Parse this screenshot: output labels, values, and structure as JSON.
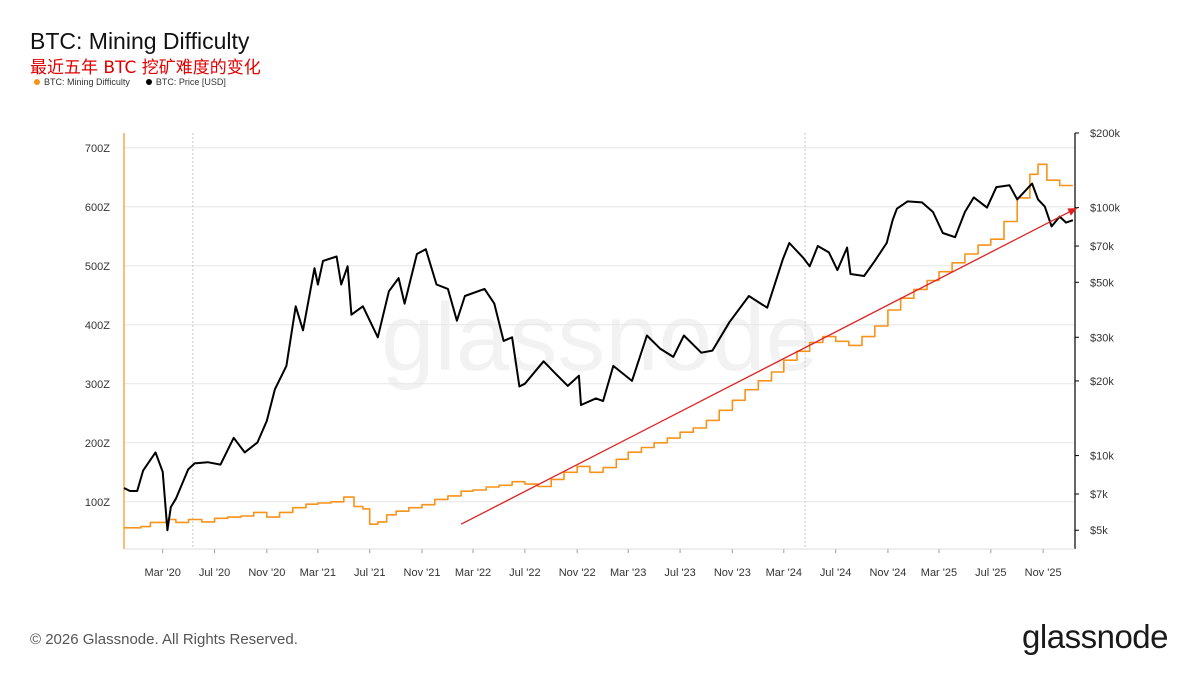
{
  "header": {
    "title": "BTC: Mining Difficulty",
    "subtitle": "最近五年 BTC 挖矿难度的变化"
  },
  "legend": [
    {
      "label": "BTC: Mining Difficulty",
      "color": "#f7931a"
    },
    {
      "label": "BTC: Price [USD]",
      "color": "#000000"
    }
  ],
  "footer": {
    "copyright": "© 2026 Glassnode. All Rights Reserved."
  },
  "brand": {
    "logo_text": "glassnode",
    "watermark": "glassnode"
  },
  "colors": {
    "difficulty": "#f7931a",
    "price": "#000000",
    "trend": "#e02020",
    "grid": "#e6e6e6"
  },
  "chart_data": {
    "type": "line",
    "title": "BTC: Mining Difficulty",
    "x_range": [
      "2019-12-01",
      "2026-01-15"
    ],
    "x_tick_labels": [
      "Mar '20",
      "Jul '20",
      "Nov '20",
      "Mar '21",
      "Jul '21",
      "Nov '21",
      "Mar '22",
      "Jul '22",
      "Nov '22",
      "Mar '23",
      "Jul '23",
      "Nov '23",
      "Mar '24",
      "Jul '24",
      "Nov '24",
      "Mar '25",
      "Jul '25",
      "Nov '25"
    ],
    "x_tick_dates": [
      "2020-03-01",
      "2020-07-01",
      "2020-11-01",
      "2021-03-01",
      "2021-07-01",
      "2021-11-01",
      "2022-03-01",
      "2022-07-01",
      "2022-11-01",
      "2023-03-01",
      "2023-07-01",
      "2023-11-01",
      "2024-03-01",
      "2024-07-01",
      "2024-11-01",
      "2025-03-01",
      "2025-07-01",
      "2025-11-01"
    ],
    "y_left": {
      "label": "",
      "unit": "Z",
      "ticks": [
        100,
        200,
        300,
        400,
        500,
        600,
        700
      ],
      "tick_labels": [
        "100Z",
        "200Z",
        "300Z",
        "400Z",
        "500Z",
        "600Z",
        "700Z"
      ],
      "range": [
        20,
        725
      ]
    },
    "y_right": {
      "label": "",
      "scale": "log",
      "ticks": [
        5000,
        7000,
        10000,
        20000,
        30000,
        50000,
        70000,
        100000,
        200000
      ],
      "tick_labels": [
        "$5k",
        "$7k",
        "$10k",
        "$20k",
        "$30k",
        "$50k",
        "$70k",
        "$100k",
        "$200k"
      ],
      "range": [
        4200,
        200000
      ]
    },
    "grid": true,
    "vertical_markers": [
      "2020-05-11",
      "2024-04-20"
    ],
    "series": [
      {
        "name": "BTC: Mining Difficulty",
        "axis": "left",
        "color": "#f7931a",
        "step": true,
        "points": [
          [
            "2019-12-01",
            56
          ],
          [
            "2020-01-10",
            58
          ],
          [
            "2020-02-01",
            65
          ],
          [
            "2020-03-10",
            70
          ],
          [
            "2020-04-01",
            65
          ],
          [
            "2020-05-01",
            70
          ],
          [
            "2020-06-01",
            66
          ],
          [
            "2020-07-01",
            72
          ],
          [
            "2020-08-01",
            74
          ],
          [
            "2020-09-01",
            76
          ],
          [
            "2020-10-01",
            82
          ],
          [
            "2020-11-01",
            74
          ],
          [
            "2020-12-01",
            82
          ],
          [
            "2021-01-01",
            90
          ],
          [
            "2021-02-01",
            96
          ],
          [
            "2021-03-01",
            98
          ],
          [
            "2021-04-01",
            100
          ],
          [
            "2021-05-01",
            108
          ],
          [
            "2021-05-25",
            92
          ],
          [
            "2021-06-15",
            88
          ],
          [
            "2021-07-01",
            62
          ],
          [
            "2021-07-20",
            66
          ],
          [
            "2021-08-10",
            78
          ],
          [
            "2021-09-01",
            84
          ],
          [
            "2021-10-01",
            90
          ],
          [
            "2021-11-01",
            95
          ],
          [
            "2021-12-01",
            104
          ],
          [
            "2022-01-01",
            110
          ],
          [
            "2022-02-01",
            118
          ],
          [
            "2022-03-01",
            120
          ],
          [
            "2022-04-01",
            125
          ],
          [
            "2022-05-01",
            128
          ],
          [
            "2022-06-01",
            134
          ],
          [
            "2022-07-01",
            130
          ],
          [
            "2022-08-01",
            126
          ],
          [
            "2022-09-01",
            138
          ],
          [
            "2022-10-01",
            150
          ],
          [
            "2022-11-01",
            160
          ],
          [
            "2022-12-01",
            150
          ],
          [
            "2023-01-01",
            158
          ],
          [
            "2023-02-01",
            172
          ],
          [
            "2023-03-01",
            184
          ],
          [
            "2023-04-01",
            192
          ],
          [
            "2023-05-01",
            200
          ],
          [
            "2023-06-01",
            208
          ],
          [
            "2023-07-01",
            218
          ],
          [
            "2023-08-01",
            225
          ],
          [
            "2023-09-01",
            238
          ],
          [
            "2023-10-01",
            255
          ],
          [
            "2023-11-01",
            272
          ],
          [
            "2023-12-01",
            290
          ],
          [
            "2024-01-01",
            305
          ],
          [
            "2024-02-01",
            320
          ],
          [
            "2024-03-01",
            340
          ],
          [
            "2024-04-01",
            355
          ],
          [
            "2024-05-01",
            370
          ],
          [
            "2024-06-01",
            380
          ],
          [
            "2024-07-01",
            372
          ],
          [
            "2024-08-01",
            365
          ],
          [
            "2024-09-01",
            380
          ],
          [
            "2024-10-01",
            398
          ],
          [
            "2024-11-01",
            425
          ],
          [
            "2024-12-01",
            445
          ],
          [
            "2025-01-01",
            460
          ],
          [
            "2025-02-01",
            475
          ],
          [
            "2025-03-01",
            490
          ],
          [
            "2025-04-01",
            505
          ],
          [
            "2025-05-01",
            520
          ],
          [
            "2025-06-01",
            535
          ],
          [
            "2025-07-01",
            545
          ],
          [
            "2025-08-01",
            575
          ],
          [
            "2025-09-01",
            615
          ],
          [
            "2025-10-01",
            655
          ],
          [
            "2025-10-20",
            672
          ],
          [
            "2025-11-10",
            645
          ],
          [
            "2025-12-10",
            636
          ],
          [
            "2026-01-10",
            636
          ]
        ]
      },
      {
        "name": "BTC: Price [USD]",
        "axis": "right",
        "color": "#000000",
        "step": false,
        "points": [
          [
            "2019-12-01",
            7400
          ],
          [
            "2019-12-15",
            7200
          ],
          [
            "2020-01-01",
            7200
          ],
          [
            "2020-01-15",
            8700
          ],
          [
            "2020-02-13",
            10300
          ],
          [
            "2020-03-01",
            8600
          ],
          [
            "2020-03-12",
            5000
          ],
          [
            "2020-03-20",
            6200
          ],
          [
            "2020-04-01",
            6700
          ],
          [
            "2020-04-30",
            8800
          ],
          [
            "2020-05-15",
            9300
          ],
          [
            "2020-06-15",
            9400
          ],
          [
            "2020-07-15",
            9200
          ],
          [
            "2020-08-15",
            11800
          ],
          [
            "2020-09-10",
            10300
          ],
          [
            "2020-10-10",
            11300
          ],
          [
            "2020-11-01",
            13800
          ],
          [
            "2020-11-20",
            18500
          ],
          [
            "2020-12-17",
            23000
          ],
          [
            "2021-01-08",
            40000
          ],
          [
            "2021-01-25",
            32000
          ],
          [
            "2021-02-21",
            57000
          ],
          [
            "2021-03-01",
            49000
          ],
          [
            "2021-03-13",
            61000
          ],
          [
            "2021-04-14",
            63500
          ],
          [
            "2021-04-25",
            49000
          ],
          [
            "2021-05-10",
            58000
          ],
          [
            "2021-05-19",
            37000
          ],
          [
            "2021-06-15",
            40000
          ],
          [
            "2021-07-20",
            30000
          ],
          [
            "2021-08-15",
            46000
          ],
          [
            "2021-09-07",
            52000
          ],
          [
            "2021-09-21",
            41000
          ],
          [
            "2021-10-20",
            65000
          ],
          [
            "2021-11-10",
            68000
          ],
          [
            "2021-12-05",
            49000
          ],
          [
            "2022-01-01",
            47000
          ],
          [
            "2022-01-22",
            35000
          ],
          [
            "2022-02-10",
            44000
          ],
          [
            "2022-03-28",
            47000
          ],
          [
            "2022-04-20",
            41000
          ],
          [
            "2022-05-12",
            29000
          ],
          [
            "2022-06-01",
            30000
          ],
          [
            "2022-06-18",
            19000
          ],
          [
            "2022-07-01",
            19500
          ],
          [
            "2022-08-14",
            24000
          ],
          [
            "2022-09-10",
            21500
          ],
          [
            "2022-10-10",
            19100
          ],
          [
            "2022-11-05",
            21000
          ],
          [
            "2022-11-10",
            16000
          ],
          [
            "2022-12-15",
            17000
          ],
          [
            "2023-01-01",
            16600
          ],
          [
            "2023-01-25",
            23000
          ],
          [
            "2023-03-10",
            20000
          ],
          [
            "2023-04-14",
            30500
          ],
          [
            "2023-05-15",
            27000
          ],
          [
            "2023-06-15",
            25000
          ],
          [
            "2023-07-10",
            30500
          ],
          [
            "2023-08-20",
            26000
          ],
          [
            "2023-09-15",
            26500
          ],
          [
            "2023-10-25",
            34500
          ],
          [
            "2023-12-10",
            44000
          ],
          [
            "2024-01-22",
            39500
          ],
          [
            "2024-02-28",
            62000
          ],
          [
            "2024-03-14",
            72000
          ],
          [
            "2024-04-15",
            63000
          ],
          [
            "2024-05-01",
            58000
          ],
          [
            "2024-05-20",
            70000
          ],
          [
            "2024-06-15",
            66000
          ],
          [
            "2024-07-05",
            56000
          ],
          [
            "2024-07-28",
            69000
          ],
          [
            "2024-08-05",
            54000
          ],
          [
            "2024-09-06",
            53000
          ],
          [
            "2024-10-01",
            61000
          ],
          [
            "2024-10-29",
            72000
          ],
          [
            "2024-11-12",
            89000
          ],
          [
            "2024-11-22",
            99000
          ],
          [
            "2024-12-17",
            106000
          ],
          [
            "2025-01-20",
            105000
          ],
          [
            "2025-02-15",
            96000
          ],
          [
            "2025-03-10",
            79000
          ],
          [
            "2025-04-08",
            76000
          ],
          [
            "2025-05-01",
            96000
          ],
          [
            "2025-05-22",
            110000
          ],
          [
            "2025-06-22",
            100000
          ],
          [
            "2025-07-14",
            121000
          ],
          [
            "2025-08-14",
            123000
          ],
          [
            "2025-09-01",
            108000
          ],
          [
            "2025-10-06",
            125000
          ],
          [
            "2025-10-20",
            108000
          ],
          [
            "2025-11-05",
            101000
          ],
          [
            "2025-11-21",
            84000
          ],
          [
            "2025-12-10",
            92000
          ],
          [
            "2025-12-25",
            87000
          ],
          [
            "2026-01-10",
            89000
          ]
        ]
      }
    ],
    "annotations": [
      {
        "type": "trend-arrow",
        "color": "#e02020",
        "from": [
          "2022-02-01",
          62
        ],
        "to": [
          "2026-01-20",
          598
        ]
      }
    ]
  }
}
